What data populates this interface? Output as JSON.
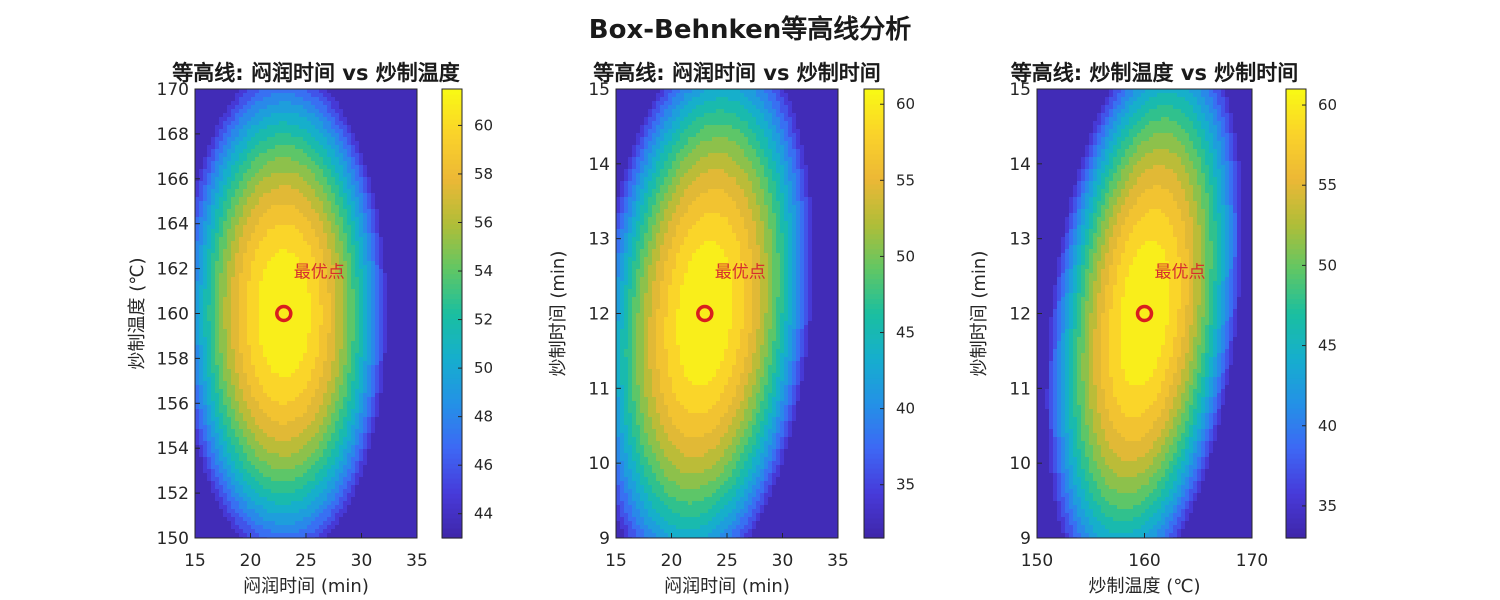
{
  "figure": {
    "suptitle": "Box-Behnken等高线分析"
  },
  "chart_data": [
    {
      "type": "contour",
      "title": "等高线: 闷润时间 vs 炒制温度",
      "xlabel": "闷润时间 (min)",
      "ylabel": "炒制温度 (℃)",
      "xlim": [
        15,
        35
      ],
      "ylim": [
        150,
        170
      ],
      "xticks": [
        15,
        20,
        25,
        30,
        35
      ],
      "yticks": [
        150,
        152,
        154,
        156,
        158,
        160,
        162,
        164,
        166,
        168,
        170
      ],
      "clim": [
        43,
        61.5
      ],
      "colorbar_ticks": [
        44,
        46,
        48,
        50,
        52,
        54,
        56,
        58,
        60
      ],
      "optimum": {
        "x": 23,
        "y": 160,
        "label": "最优点"
      },
      "grid": false
    },
    {
      "type": "contour",
      "title": "等高线: 闷润时间 vs 炒制时间",
      "xlabel": "闷润时间 (min)",
      "ylabel": "炒制时间 (min)",
      "xlim": [
        15,
        35
      ],
      "ylim": [
        9,
        15
      ],
      "xticks": [
        15,
        20,
        25,
        30,
        35
      ],
      "yticks": [
        9,
        10,
        11,
        12,
        13,
        14,
        15
      ],
      "clim": [
        31.5,
        61
      ],
      "colorbar_ticks": [
        35,
        40,
        45,
        50,
        55,
        60
      ],
      "optimum": {
        "x": 23,
        "y": 12,
        "label": "最优点"
      },
      "grid": false
    },
    {
      "type": "contour",
      "title": "等高线: 炒制温度 vs 炒制时间",
      "xlabel": "炒制温度 (℃)",
      "ylabel": "炒制时间 (min)",
      "xlim": [
        150,
        170
      ],
      "ylim": [
        9,
        15
      ],
      "xticks": [
        150,
        160,
        170
      ],
      "yticks": [
        9,
        10,
        11,
        12,
        13,
        14,
        15
      ],
      "clim": [
        33,
        61
      ],
      "colorbar_ticks": [
        35,
        40,
        45,
        50,
        55,
        60
      ],
      "optimum": {
        "x": 160,
        "y": 12,
        "label": "最优点"
      },
      "grid": false
    }
  ],
  "colors": {
    "optimum_marker": "#d91e1e",
    "colormap": "parula"
  }
}
